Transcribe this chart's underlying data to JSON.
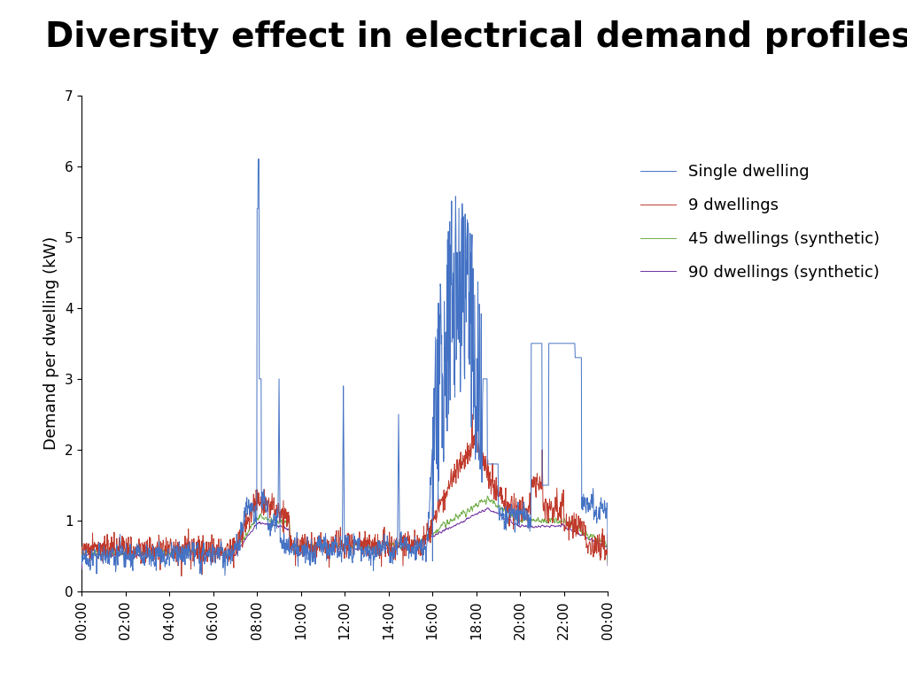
{
  "title": "Diversity effect in electrical demand profiles",
  "ylabel": "Demand per dwelling (kW)",
  "ylim": [
    0,
    7
  ],
  "yticks": [
    0,
    1,
    2,
    3,
    4,
    5,
    6,
    7
  ],
  "n_points": 1440,
  "colors": {
    "single": "#4472C4",
    "nine": "#C0392B",
    "forty_five": "#70AD47",
    "ninety": "#7030A0"
  },
  "legend_labels": [
    "Single dwelling",
    "9 dwellings",
    "45 dwellings (synthetic)",
    "90 dwellings (synthetic)"
  ],
  "title_fontsize": 28,
  "label_fontsize": 13,
  "tick_fontsize": 11,
  "legend_fontsize": 13,
  "background_color": "#FFFFFF",
  "linewidth_single": 0.7,
  "linewidth_rest": 0.7
}
